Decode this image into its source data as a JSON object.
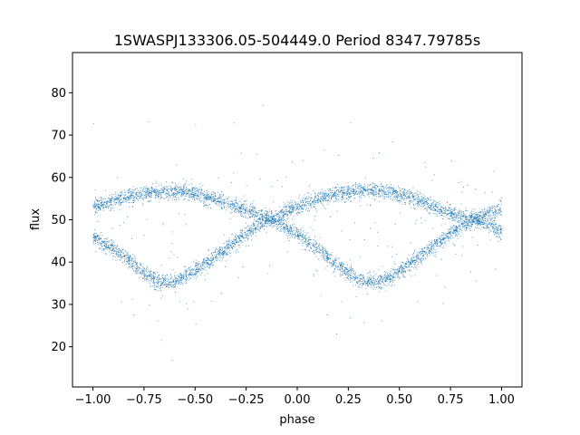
{
  "chart_data": {
    "type": "scatter",
    "title": "1SWASPJ133306.05-504449.0 Period 8347.79785s",
    "xlabel": "phase",
    "ylabel": "flux",
    "xlim": [
      -1.1,
      1.1
    ],
    "ylim": [
      10.5,
      89.5
    ],
    "x_ticks": [
      -1.0,
      -0.75,
      -0.5,
      -0.25,
      0.0,
      0.25,
      0.5,
      0.75,
      1.0
    ],
    "x_tick_labels": [
      "−1.00",
      "−0.75",
      "−0.50",
      "−0.25",
      "0.00",
      "0.25",
      "0.50",
      "0.75",
      "1.00"
    ],
    "y_ticks": [
      20,
      30,
      40,
      50,
      60,
      70,
      80
    ],
    "y_tick_labels": [
      "20",
      "30",
      "40",
      "50",
      "60",
      "70",
      "80"
    ],
    "grid": false,
    "marker_color": "#1f77b4",
    "series": [
      {
        "branch": "upper",
        "x": [
          -1.0,
          -0.9,
          -0.8,
          -0.7,
          -0.6,
          -0.5,
          -0.4,
          -0.3,
          -0.2,
          -0.12,
          -0.05,
          0.0,
          0.1,
          0.2,
          0.3,
          0.4,
          0.5,
          0.6,
          0.7,
          0.8,
          0.88,
          0.95,
          1.0
        ],
        "y": [
          53,
          54.5,
          55.8,
          56.5,
          56.8,
          56.2,
          54.8,
          53,
          51.3,
          50,
          52,
          53,
          55,
          56.3,
          56.8,
          56.8,
          56,
          54.5,
          52.5,
          50.8,
          50,
          48.5,
          47
        ]
      },
      {
        "branch": "lower",
        "x": [
          -1.0,
          -0.95,
          -0.9,
          -0.85,
          -0.8,
          -0.75,
          -0.7,
          -0.65,
          -0.6,
          -0.55,
          -0.5,
          -0.45,
          -0.4,
          -0.35,
          -0.3,
          -0.25,
          -0.2,
          -0.15,
          -0.12,
          -0.1,
          -0.05,
          0.0,
          0.05,
          0.1,
          0.15,
          0.2,
          0.25,
          0.3,
          0.35,
          0.4,
          0.45,
          0.5,
          0.55,
          0.6,
          0.65,
          0.7,
          0.75,
          0.8,
          0.85,
          0.88,
          0.9,
          0.95,
          1.0
        ],
        "y": [
          46,
          44.5,
          43,
          41.5,
          39.5,
          37.5,
          36,
          35.3,
          35.5,
          36.5,
          38,
          39.5,
          41.2,
          43,
          45,
          46.8,
          48.5,
          49.8,
          50,
          49.5,
          48,
          46.5,
          44.8,
          43,
          41,
          39.2,
          37.3,
          36,
          35.3,
          35.5,
          36.3,
          37.8,
          39.5,
          41.3,
          43.2,
          45,
          46.8,
          48.5,
          49.6,
          50,
          50.8,
          51.8,
          52.5
        ]
      }
    ]
  }
}
